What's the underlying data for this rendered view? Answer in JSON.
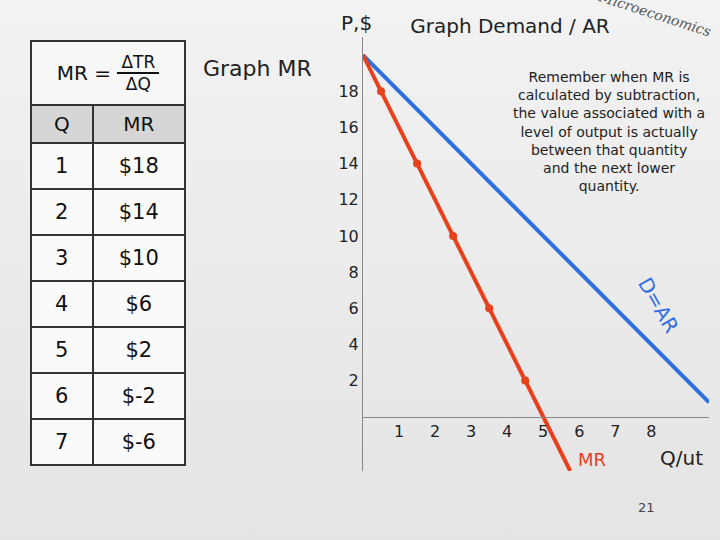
{
  "slide": {
    "heading": "Graph MR",
    "page_number": "21",
    "logo": "Microeconomics"
  },
  "table": {
    "formula": {
      "lhs": "MR =",
      "numerator": "ΔTR",
      "denominator": "ΔQ"
    },
    "header": [
      "Q",
      "MR"
    ],
    "rows": [
      [
        "1",
        "$18"
      ],
      [
        "2",
        "$14"
      ],
      [
        "3",
        "$10"
      ],
      [
        "4",
        "$6"
      ],
      [
        "5",
        "$2"
      ],
      [
        "6",
        "$-2"
      ],
      [
        "7",
        "$-6"
      ]
    ]
  },
  "chart_data": {
    "type": "line",
    "title": "Graph Demand / AR",
    "xlabel": "Q/ut",
    "ylabel": "P,$",
    "annotations": [
      "Remember when MR is",
      "calculated by subtraction,",
      "the value associated with a",
      "level of output is actually",
      "between that quantity",
      "and the next lower",
      "quantity."
    ],
    "xlim": [
      0,
      9.6
    ],
    "ylim": [
      -3,
      21
    ],
    "xticks": [
      1,
      2,
      3,
      4,
      5,
      6,
      7,
      8
    ],
    "yticks": [
      2,
      4,
      6,
      8,
      10,
      12,
      14,
      16,
      18
    ],
    "grid": false,
    "series": [
      {
        "name": "D=AR",
        "color": "#2f6fe0",
        "x": [
          0,
          9.6
        ],
        "values": [
          20,
          0.8
        ],
        "line_style": "solid"
      },
      {
        "name": "MR",
        "color": "#e8401c",
        "x": [
          0,
          5.75
        ],
        "values": [
          20,
          -3
        ],
        "line_style": "solid"
      },
      {
        "color": "#e8401c",
        "x": [
          0.5,
          1.5,
          2.5,
          3.5,
          4.5
        ],
        "values": [
          18,
          14,
          10,
          6,
          2
        ],
        "marker": "circle",
        "type": "scatter"
      }
    ]
  }
}
